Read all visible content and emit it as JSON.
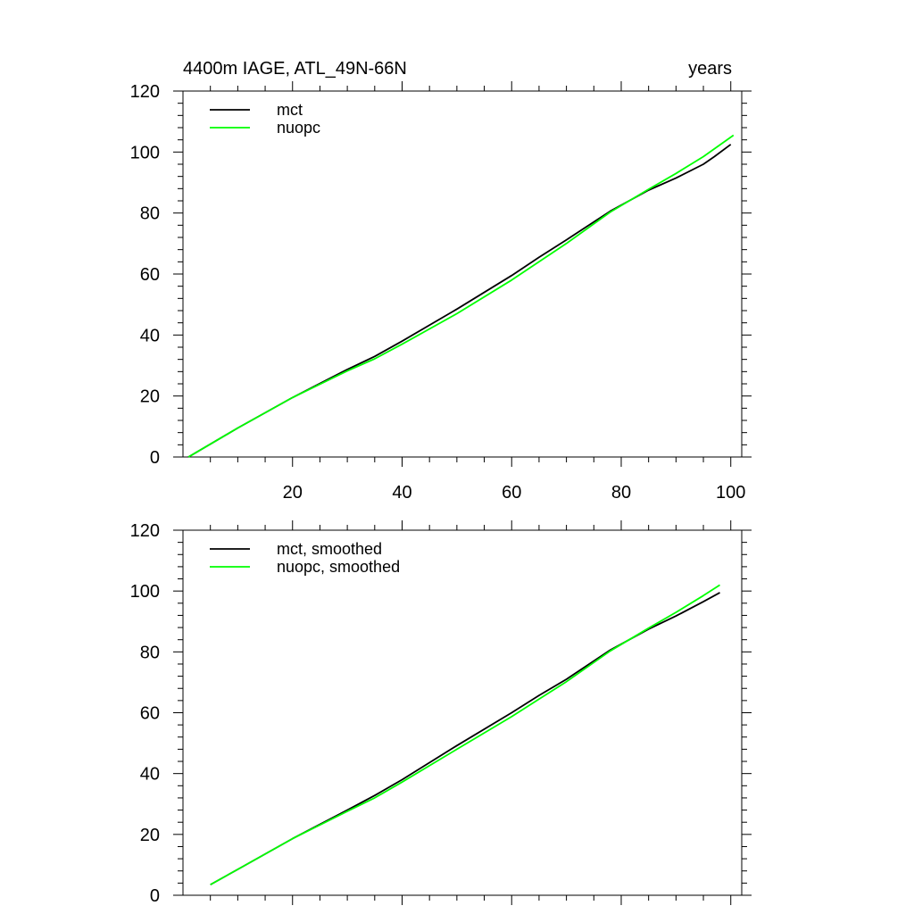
{
  "chart_data": [
    {
      "type": "line",
      "title_left": "4400m IAGE, ATL_49N-66N",
      "title_right": "years",
      "xlim": [
        0,
        102
      ],
      "ylim": [
        0,
        120
      ],
      "xticks": [
        20,
        40,
        60,
        80,
        100
      ],
      "yticks": [
        0,
        20,
        40,
        60,
        80,
        100,
        120
      ],
      "show_x_tick_labels": true,
      "legend_position": "top-left",
      "series": [
        {
          "name": "mct",
          "color": "#000000",
          "x": [
            1,
            10,
            20,
            30,
            35,
            40,
            50,
            60,
            65,
            70,
            78,
            85,
            90,
            95,
            97,
            100
          ],
          "y": [
            0,
            9.5,
            19.5,
            28.7,
            33,
            38,
            48.5,
            59.5,
            65.5,
            71.2,
            80.6,
            87.5,
            91.5,
            96,
            98.5,
            102.5
          ]
        },
        {
          "name": "nuopc",
          "color": "#00ff00",
          "x": [
            1,
            10,
            20,
            30,
            35,
            40,
            50,
            60,
            65,
            70,
            78,
            85,
            90,
            95,
            100.5
          ],
          "y": [
            0,
            9.5,
            19.5,
            28.2,
            32.2,
            37,
            47,
            58,
            64,
            70,
            80.3,
            87.8,
            93,
            98.5,
            105.5
          ]
        }
      ]
    },
    {
      "type": "line",
      "title_left": "",
      "title_right": "",
      "xlim": [
        0,
        102
      ],
      "ylim": [
        0,
        120
      ],
      "xticks": [
        20,
        40,
        60,
        80,
        100
      ],
      "yticks": [
        0,
        20,
        40,
        60,
        80,
        100,
        120
      ],
      "show_x_tick_labels": false,
      "legend_position": "top-left",
      "series": [
        {
          "name": "mct, smoothed",
          "color": "#000000",
          "x": [
            5,
            10,
            20,
            30,
            35,
            40,
            50,
            60,
            65,
            70,
            78,
            85,
            90,
            95,
            98
          ],
          "y": [
            3.5,
            8.5,
            18.6,
            28,
            32.8,
            38,
            49.2,
            60,
            65.7,
            71,
            80.6,
            87.5,
            91.8,
            96.5,
            99.5
          ]
        },
        {
          "name": "nuopc, smoothed",
          "color": "#00ff00",
          "x": [
            5,
            10,
            20,
            30,
            35,
            40,
            50,
            60,
            65,
            70,
            78,
            85,
            90,
            95,
            98
          ],
          "y": [
            3.5,
            8.5,
            18.6,
            27.6,
            32,
            37.2,
            48,
            58.7,
            64.5,
            70.2,
            80.3,
            87.8,
            93,
            98.5,
            102
          ]
        }
      ]
    }
  ]
}
